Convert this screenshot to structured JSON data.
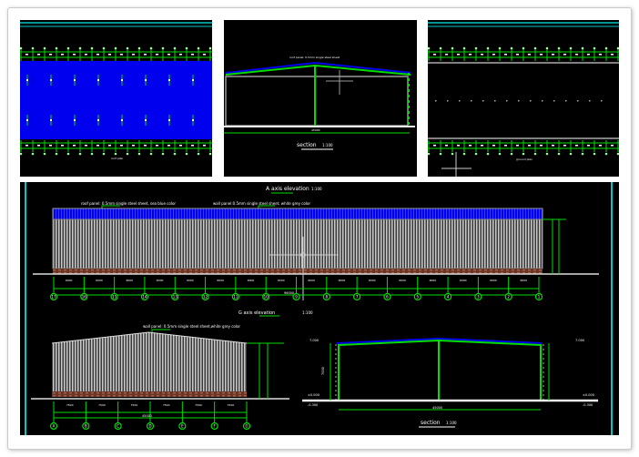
{
  "thumbnails": {
    "roof_plan": {
      "scale_label": "roof plan"
    },
    "section": {
      "title": "section",
      "scale": "1:100",
      "roof_note": "roof panel: 0.5mm single steel sheet",
      "span": "45000"
    },
    "column_plan": {
      "scale_label": "ground plan"
    }
  },
  "a_axis_elevation": {
    "title": "A axis elevation",
    "scale": "1:100",
    "roof_note": "roof panel: 0.5mm single steel sheet, sea blue color",
    "wall_note": "wall panel:0.5mm single steel sheet, white grey color",
    "axes": [
      "17",
      "16",
      "15",
      "14",
      "13",
      "12",
      "11",
      "10",
      "9",
      "8",
      "7",
      "6",
      "5",
      "4",
      "3",
      "2",
      "1"
    ],
    "bay": "6000",
    "total": "96000"
  },
  "g_axis_elevation": {
    "title": "G axis elevation",
    "scale": "1:100",
    "wall_note": "wall panel: 0.5mm single steel sheet,white grey color",
    "axes": [
      "A",
      "B",
      "C",
      "D",
      "E",
      "F",
      "G"
    ],
    "bay": "7500",
    "total": "45000"
  },
  "main_section": {
    "title": "section",
    "scale": "1:100",
    "span": "45000",
    "height": "7000",
    "eave_level": "7.000",
    "ground_level": "±0.000",
    "outside_level": "-0.300"
  },
  "colors": {
    "background": "#000000",
    "green": "#00dd00",
    "roof_blue": "#0000ee",
    "wall_grey": "#bdbdbd",
    "brick": "#7a3d2a",
    "cyan": "#00c8c8"
  }
}
